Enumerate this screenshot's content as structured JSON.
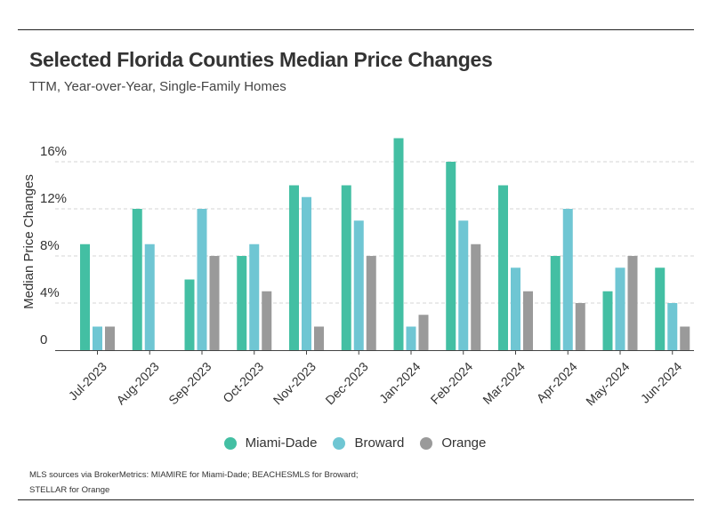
{
  "colors": {
    "miami": "#43bfa3",
    "broward": "#6fc6d3",
    "orange": "#9a9a9a",
    "axis": "#444444",
    "grid": "#d4d4d4"
  },
  "chart_data": {
    "type": "bar",
    "title": "Selected Florida Counties Median Price Changes",
    "subtitle": "TTM, Year-over-Year, Single-Family Homes",
    "xlabel": "",
    "ylabel": "Median Price Changes",
    "ylim": [
      0,
      18
    ],
    "yticks": [
      {
        "value": 0,
        "label": "0"
      },
      {
        "value": 4,
        "label": "4%"
      },
      {
        "value": 8,
        "label": "8%"
      },
      {
        "value": 12,
        "label": "12%"
      },
      {
        "value": 16,
        "label": "16%"
      }
    ],
    "categories": [
      "Jul-2023",
      "Aug-2023",
      "Sep-2023",
      "Oct-2023",
      "Nov-2023",
      "Dec-2023",
      "Jan-2024",
      "Feb-2024",
      "Mar-2024",
      "Apr-2024",
      "May-2024",
      "Jun-2024"
    ],
    "series": [
      {
        "name": "Miami-Dade",
        "color": "#43bfa3",
        "values": [
          9,
          12,
          6,
          8,
          14,
          14,
          18,
          16,
          14,
          8,
          5,
          7
        ]
      },
      {
        "name": "Broward",
        "color": "#6fc6d3",
        "values": [
          2,
          9,
          12,
          9,
          13,
          11,
          2,
          11,
          7,
          12,
          7,
          4
        ]
      },
      {
        "name": "Orange",
        "color": "#9a9a9a",
        "values": [
          2,
          0,
          8,
          5,
          2,
          8,
          3,
          9,
          5,
          4,
          8,
          2
        ]
      }
    ],
    "legend": [
      "Miami-Dade",
      "Broward",
      "Orange"
    ],
    "legend_position": "bottom"
  },
  "footer": {
    "source_line1": "MLS sources via BrokerMetrics: MIAMIRE for Miami-Dade; BEACHESMLS for Broward;",
    "source_line2": "STELLAR for Orange"
  }
}
